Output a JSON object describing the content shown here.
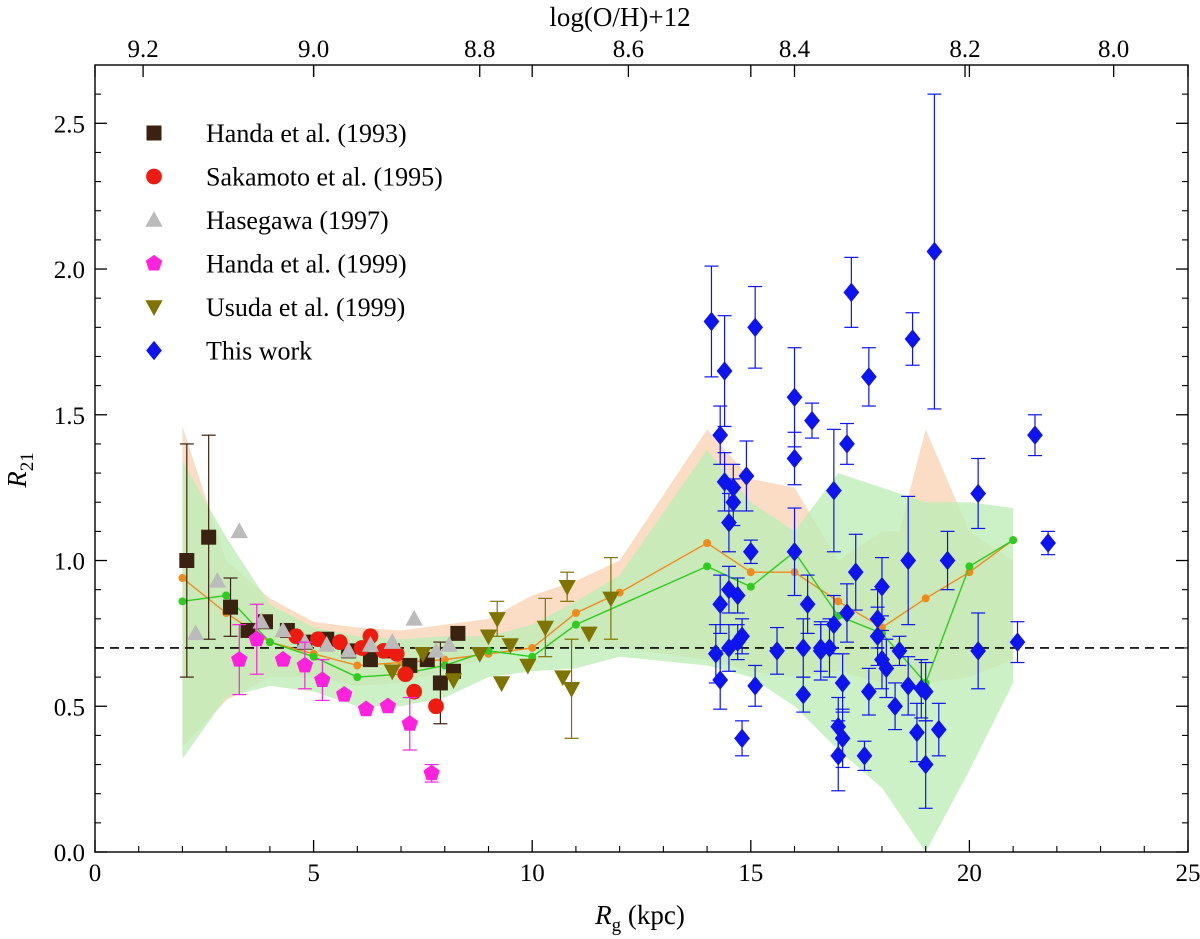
{
  "chart_data": {
    "type": "scatter",
    "xlabel": {
      "sym": "R",
      "sub": "g",
      "unit": " (kpc)"
    },
    "ylabel": {
      "sym": "R",
      "sub": "21"
    },
    "top_axis_label": "log(O/H)+12",
    "xlim": [
      0,
      25
    ],
    "ylim": [
      0,
      2.7
    ],
    "x_ticks": [
      "0",
      "5",
      "10",
      "15",
      "20",
      "25"
    ],
    "x_tick_values": [
      0,
      5,
      10,
      15,
      20,
      25
    ],
    "y_ticks": [
      "0.0",
      "0.5",
      "1.0",
      "1.5",
      "2.0",
      "2.5"
    ],
    "y_tick_values": [
      0,
      0.5,
      1.0,
      1.5,
      2.0,
      2.5
    ],
    "top_ticks": [
      "9.2",
      "9.0",
      "8.8",
      "8.6",
      "8.4",
      "8.2",
      "8.0"
    ],
    "top_tick_rg": [
      1.1,
      5.0,
      8.8,
      12.2,
      16.0,
      19.9,
      23.3
    ],
    "reference_line": 0.7,
    "legend_position": "top-left",
    "bands": [
      {
        "name": "orange-band",
        "color": "#f9d5b5",
        "upper": [
          [
            2,
            1.46
          ],
          [
            3,
            1.0
          ],
          [
            4,
            0.87
          ],
          [
            5,
            0.79
          ],
          [
            6,
            0.77
          ],
          [
            7,
            0.76
          ],
          [
            8,
            0.78
          ],
          [
            9,
            0.8
          ],
          [
            10,
            0.88
          ],
          [
            11,
            0.93
          ],
          [
            12,
            1.0
          ],
          [
            14,
            1.45
          ],
          [
            15,
            1.28
          ],
          [
            16,
            1.25
          ],
          [
            17,
            1.0
          ],
          [
            18,
            1.1
          ],
          [
            18.4,
            1.1
          ],
          [
            19,
            1.45
          ],
          [
            20,
            1.1
          ],
          [
            21,
            1.0
          ]
        ],
        "lower": [
          [
            2,
            0.36
          ],
          [
            3,
            0.52
          ],
          [
            4,
            0.6
          ],
          [
            5,
            0.6
          ],
          [
            6,
            0.57
          ],
          [
            7,
            0.58
          ],
          [
            8,
            0.62
          ],
          [
            9,
            0.67
          ],
          [
            10,
            0.7
          ],
          [
            11,
            0.7
          ],
          [
            12,
            0.7
          ],
          [
            14,
            0.66
          ],
          [
            15,
            0.62
          ],
          [
            16,
            0.6
          ],
          [
            17,
            0.62
          ],
          [
            18,
            0.58
          ],
          [
            19,
            0.58
          ],
          [
            20,
            0.6
          ],
          [
            21,
            0.66
          ]
        ]
      },
      {
        "name": "green-band",
        "color": "#bfeeb8",
        "upper": [
          [
            2,
            1.34
          ],
          [
            3,
            1.08
          ],
          [
            4,
            0.85
          ],
          [
            5,
            0.77
          ],
          [
            6,
            0.74
          ],
          [
            7,
            0.73
          ],
          [
            8,
            0.74
          ],
          [
            9,
            0.74
          ],
          [
            10,
            0.78
          ],
          [
            11,
            0.86
          ],
          [
            12,
            0.95
          ],
          [
            14,
            1.38
          ],
          [
            15,
            1.2
          ],
          [
            16,
            1.1
          ],
          [
            17,
            1.3
          ],
          [
            18,
            1.25
          ],
          [
            19,
            1.2
          ],
          [
            20,
            1.2
          ],
          [
            21,
            1.18
          ]
        ],
        "lower": [
          [
            2,
            0.32
          ],
          [
            3,
            0.53
          ],
          [
            4,
            0.57
          ],
          [
            5,
            0.55
          ],
          [
            6,
            0.5
          ],
          [
            7,
            0.5
          ],
          [
            8,
            0.53
          ],
          [
            9,
            0.6
          ],
          [
            10,
            0.62
          ],
          [
            11,
            0.63
          ],
          [
            12,
            0.67
          ],
          [
            14,
            0.64
          ],
          [
            15,
            0.6
          ],
          [
            16,
            0.5
          ],
          [
            17,
            0.35
          ],
          [
            18,
            0.22
          ],
          [
            19,
            0.0
          ],
          [
            20,
            0.28
          ],
          [
            21,
            0.58
          ]
        ]
      }
    ],
    "lines": [
      {
        "name": "orange-mean",
        "color": "#f08a1c",
        "points": [
          [
            2,
            0.94
          ],
          [
            3,
            0.82
          ],
          [
            4,
            0.72
          ],
          [
            5,
            0.68
          ],
          [
            6,
            0.64
          ],
          [
            7,
            0.65
          ],
          [
            8,
            0.66
          ],
          [
            9,
            0.68
          ],
          [
            10,
            0.7
          ],
          [
            11,
            0.82
          ],
          [
            12,
            0.89
          ],
          [
            14,
            1.06
          ],
          [
            15,
            0.96
          ],
          [
            16,
            0.96
          ],
          [
            17,
            0.86
          ],
          [
            18,
            0.77
          ],
          [
            19,
            0.87
          ],
          [
            20,
            0.96
          ],
          [
            21,
            1.07
          ]
        ]
      },
      {
        "name": "green-mean",
        "color": "#2ecc1e",
        "points": [
          [
            2,
            0.86
          ],
          [
            3,
            0.88
          ],
          [
            4,
            0.72
          ],
          [
            5,
            0.67
          ],
          [
            6,
            0.6
          ],
          [
            7,
            0.61
          ],
          [
            8,
            0.64
          ],
          [
            9,
            0.69
          ],
          [
            10,
            0.67
          ],
          [
            11,
            0.78
          ],
          [
            14,
            0.98
          ],
          [
            15,
            0.91
          ],
          [
            16,
            1.03
          ],
          [
            17,
            0.81
          ],
          [
            18,
            0.75
          ],
          [
            19,
            0.58
          ],
          [
            20,
            0.98
          ],
          [
            21,
            1.07
          ]
        ]
      }
    ],
    "series": [
      {
        "name": "Handa et al. (1993)",
        "marker": "square",
        "color": "#3a2210",
        "points": [
          [
            2.1,
            1.0,
            0.4
          ],
          [
            2.6,
            1.08,
            0.35
          ],
          [
            3.1,
            0.84,
            0.1
          ],
          [
            3.5,
            0.76,
            0
          ],
          [
            3.9,
            0.79,
            0
          ],
          [
            4.4,
            0.76,
            0
          ],
          [
            4.8,
            0.72,
            0
          ],
          [
            5.3,
            0.73,
            0
          ],
          [
            5.8,
            0.69,
            0
          ],
          [
            6.3,
            0.66,
            0
          ],
          [
            6.8,
            0.69,
            0
          ],
          [
            7.2,
            0.64,
            0
          ],
          [
            7.6,
            0.66,
            0
          ],
          [
            7.9,
            0.58,
            0.14
          ],
          [
            8.2,
            0.62,
            0
          ],
          [
            8.3,
            0.75,
            0
          ]
        ]
      },
      {
        "name": "Sakamoto et al. (1995)",
        "marker": "circle",
        "color": "#ee1c10",
        "points": [
          [
            4.6,
            0.74
          ],
          [
            5.1,
            0.73
          ],
          [
            5.6,
            0.72
          ],
          [
            6.1,
            0.7
          ],
          [
            6.3,
            0.74
          ],
          [
            6.6,
            0.69
          ],
          [
            6.9,
            0.68
          ],
          [
            7.1,
            0.61
          ],
          [
            7.3,
            0.55
          ],
          [
            7.8,
            0.5
          ]
        ]
      },
      {
        "name": "Hasegawa (1997)",
        "marker": "triangle-up",
        "color": "#bbbbbb",
        "points": [
          [
            2.3,
            0.75
          ],
          [
            2.8,
            0.93
          ],
          [
            3.3,
            1.1
          ],
          [
            3.8,
            0.79
          ],
          [
            4.3,
            0.76
          ],
          [
            4.8,
            0.72
          ],
          [
            5.3,
            0.71
          ],
          [
            5.8,
            0.69
          ],
          [
            6.3,
            0.71
          ],
          [
            6.8,
            0.72
          ],
          [
            7.3,
            0.8
          ],
          [
            7.8,
            0.69
          ],
          [
            8.1,
            0.71
          ]
        ]
      },
      {
        "name": "Handa et al. (1999)",
        "marker": "pentagon",
        "color": "#ff22dd",
        "points": [
          [
            3.3,
            0.66,
            0.12
          ],
          [
            3.7,
            0.73,
            0.12
          ],
          [
            4.3,
            0.66,
            0
          ],
          [
            4.8,
            0.64,
            0.08
          ],
          [
            5.2,
            0.59,
            0.07
          ],
          [
            5.7,
            0.54,
            0
          ],
          [
            6.2,
            0.49,
            0
          ],
          [
            6.7,
            0.5,
            0
          ],
          [
            7.2,
            0.44,
            0.09
          ],
          [
            7.7,
            0.27,
            0.03
          ]
        ]
      },
      {
        "name": "Usuda et al. (1999)",
        "marker": "triangle-down",
        "color": "#7f7400",
        "points": [
          [
            6.8,
            0.62,
            0
          ],
          [
            7.5,
            0.68,
            0
          ],
          [
            8.2,
            0.59,
            0
          ],
          [
            8.8,
            0.68,
            0
          ],
          [
            9.2,
            0.8,
            0.06
          ],
          [
            9.3,
            0.58,
            0
          ],
          [
            9.9,
            0.64,
            0
          ],
          [
            10.3,
            0.77,
            0.1
          ],
          [
            10.7,
            0.6,
            0
          ],
          [
            10.8,
            0.91,
            0.05
          ],
          [
            10.9,
            0.56,
            0.17
          ],
          [
            11.3,
            0.75,
            0
          ],
          [
            11.8,
            0.87,
            0.14
          ],
          [
            9.0,
            0.74,
            0
          ],
          [
            9.5,
            0.71,
            0
          ]
        ]
      },
      {
        "name": "This work",
        "marker": "diamond",
        "color": "#0e14ee",
        "points": [
          [
            14.1,
            1.82,
            0.19
          ],
          [
            14.2,
            0.68,
            0.1
          ],
          [
            14.3,
            1.43,
            0.1
          ],
          [
            14.3,
            0.59,
            0.1
          ],
          [
            14.3,
            0.85,
            0.1
          ],
          [
            14.4,
            1.65,
            0.19
          ],
          [
            14.4,
            1.27,
            0.1
          ],
          [
            14.5,
            1.13,
            0.1
          ],
          [
            14.5,
            0.9,
            0.08
          ],
          [
            14.5,
            0.7,
            0.08
          ],
          [
            14.6,
            1.2,
            0.08
          ],
          [
            14.6,
            1.25,
            0.08
          ],
          [
            14.7,
            0.88,
            0.06
          ],
          [
            14.7,
            0.72,
            0.06
          ],
          [
            14.8,
            0.74,
            0.06
          ],
          [
            14.8,
            0.39,
            0.06
          ],
          [
            14.9,
            1.29,
            0.12
          ],
          [
            15.0,
            1.03,
            0.04
          ],
          [
            15.1,
            1.8,
            0.14
          ],
          [
            15.1,
            0.57,
            0.07
          ],
          [
            15.6,
            0.69,
            0.08
          ],
          [
            16.0,
            1.56,
            0.17
          ],
          [
            16.0,
            1.35,
            0.09
          ],
          [
            16.0,
            1.03,
            0.15
          ],
          [
            16.2,
            0.7,
            0.1
          ],
          [
            16.2,
            0.54,
            0.06
          ],
          [
            16.3,
            0.85,
            0.1
          ],
          [
            16.4,
            1.48,
            0.06
          ],
          [
            16.6,
            0.69,
            0.1
          ],
          [
            16.8,
            0.7,
            0.1
          ],
          [
            16.9,
            1.24,
            0.21
          ],
          [
            16.9,
            0.78,
            0.1
          ],
          [
            17.0,
            0.43,
            0.1
          ],
          [
            17.0,
            0.33,
            0.12
          ],
          [
            17.1,
            0.58,
            0.1
          ],
          [
            17.1,
            0.39,
            0.1
          ],
          [
            17.2,
            1.4,
            0.07
          ],
          [
            17.2,
            0.82,
            0.1
          ],
          [
            17.3,
            1.92,
            0.12
          ],
          [
            17.4,
            0.96,
            0.13
          ],
          [
            17.6,
            0.33,
            0.05
          ],
          [
            17.7,
            1.63,
            0.1
          ],
          [
            17.7,
            0.55,
            0.08
          ],
          [
            17.9,
            0.8,
            0.1
          ],
          [
            18.0,
            0.91,
            0.1
          ],
          [
            18.0,
            0.66,
            0.1
          ],
          [
            18.1,
            0.63,
            0.1
          ],
          [
            18.3,
            0.5,
            0.08
          ],
          [
            18.4,
            0.69,
            0.05
          ],
          [
            18.6,
            1.0,
            0.22
          ],
          [
            18.6,
            0.57,
            0.1
          ],
          [
            18.7,
            1.76,
            0.09
          ],
          [
            18.8,
            0.41,
            0.1
          ],
          [
            18.9,
            0.56,
            0.1
          ],
          [
            19.0,
            0.55,
            0.1
          ],
          [
            19.0,
            0.3,
            0.15
          ],
          [
            19.2,
            2.06,
            0.54
          ],
          [
            19.3,
            0.42,
            0.09
          ],
          [
            19.5,
            1.0,
            0.1
          ],
          [
            20.2,
            0.69,
            0.13
          ],
          [
            20.2,
            1.23,
            0.12
          ],
          [
            21.1,
            0.72,
            0.07
          ],
          [
            21.5,
            1.43,
            0.07
          ],
          [
            21.8,
            1.06,
            0.04
          ],
          [
            17.9,
            0.74,
            0.1
          ],
          [
            16.6,
            0.7,
            0.08
          ]
        ]
      }
    ]
  }
}
